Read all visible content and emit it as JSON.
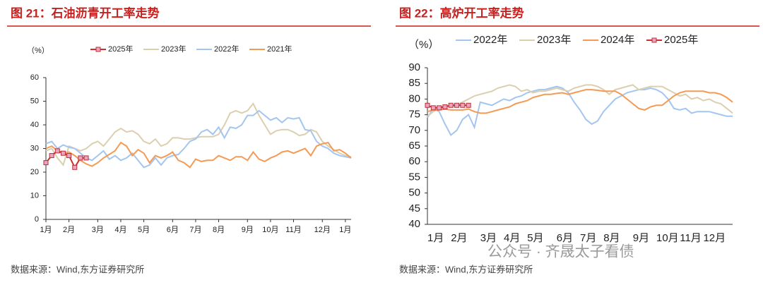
{
  "chart_data": [
    {
      "type": "line",
      "title": "图 21：石油沥青开工率走势",
      "y_label": "（%）",
      "source": "数据来源：Wind,东方证券研究所",
      "legend": "top",
      "categories": [
        "1月",
        null,
        null,
        null,
        "2月",
        null,
        null,
        null,
        null,
        "3月",
        null,
        null,
        null,
        "4月",
        null,
        null,
        null,
        "5月",
        null,
        null,
        null,
        null,
        "6月",
        null,
        null,
        null,
        "7月",
        null,
        null,
        null,
        "8月",
        null,
        null,
        null,
        null,
        "9月",
        null,
        null,
        null,
        "10月",
        null,
        null,
        null,
        "11月",
        null,
        null,
        null,
        null,
        "12月",
        null,
        null,
        null,
        "1月",
        null
      ],
      "ylim": [
        0,
        60
      ],
      "yticks": [
        0,
        10,
        20,
        30,
        40,
        50,
        60
      ],
      "series": [
        {
          "name": "2025年",
          "color": "#d42a2a",
          "markers": true,
          "values": [
            24,
            27,
            29,
            28,
            27,
            22,
            26,
            26,
            null,
            null,
            null,
            null,
            null,
            null,
            null,
            null,
            null,
            null,
            null,
            null,
            null,
            null,
            null,
            null,
            null,
            null,
            null,
            null,
            null,
            null,
            null,
            null,
            null,
            null,
            null,
            null,
            null,
            null,
            null,
            null,
            null,
            null,
            null,
            null,
            null,
            null,
            null,
            null,
            null,
            null,
            null,
            null,
            null,
            null
          ]
        },
        {
          "name": "2023年",
          "color": "#dccfb0",
          "values": [
            29,
            30,
            26,
            23,
            31,
            30,
            29,
            30,
            32,
            33,
            31,
            34,
            37,
            38.5,
            37,
            37.5,
            36,
            33,
            32,
            34,
            31,
            32,
            34.5,
            34.5,
            34,
            34,
            34.5,
            35,
            35,
            35,
            36,
            40,
            45,
            46,
            45,
            46,
            49,
            44,
            40,
            36,
            37.5,
            38,
            38,
            37,
            35.5,
            36,
            38,
            37,
            33,
            31,
            29.5,
            28,
            27,
            26.5
          ]
        },
        {
          "name": "2022年",
          "color": "#a3c6f0",
          "values": [
            32,
            33,
            30,
            31.5,
            30.5,
            30,
            28,
            26,
            25,
            27,
            29,
            25.5,
            27,
            25,
            26,
            28,
            25,
            22,
            23,
            26,
            23,
            26,
            27,
            27.5,
            30,
            33,
            34,
            37,
            38,
            36,
            39,
            34.5,
            39,
            38.5,
            40,
            44,
            44,
            46,
            44,
            42,
            43,
            41,
            43,
            42.5,
            43,
            38,
            37.5,
            33,
            31,
            30,
            28,
            27,
            26.5,
            26
          ]
        },
        {
          "name": "2021年",
          "color": "#f59a55",
          "values": [
            30,
            31,
            29,
            28,
            28.5,
            27,
            25,
            23.5,
            22.5,
            24,
            26,
            27.5,
            29,
            32.5,
            31,
            27,
            29.5,
            28,
            24,
            27,
            26,
            27,
            28.5,
            25,
            24,
            22,
            25.5,
            24.5,
            25,
            25,
            27,
            26,
            25,
            26.5,
            26.5,
            25,
            28.5,
            25.5,
            24.5,
            26,
            27,
            28.5,
            29,
            28,
            29,
            30,
            27,
            31,
            32,
            32.5,
            29,
            29.5,
            28,
            26
          ]
        }
      ]
    },
    {
      "type": "line",
      "title": "图 22：高炉开工率走势",
      "y_label": "（%）",
      "source": "数据来源：Wind,东方证券研究所",
      "legend": "top-left",
      "categories": [
        "1月",
        null,
        null,
        null,
        "2月",
        null,
        null,
        null,
        null,
        "3月",
        null,
        null,
        null,
        "4月",
        null,
        null,
        null,
        "5月",
        null,
        null,
        null,
        null,
        "6月",
        null,
        null,
        null,
        "7月",
        null,
        null,
        null,
        "8月",
        null,
        null,
        null,
        null,
        "9月",
        null,
        null,
        null,
        "10月",
        null,
        null,
        null,
        "11月",
        null,
        null,
        null,
        "12月",
        null,
        null,
        null,
        null,
        null
      ],
      "ylim": [
        40,
        90
      ],
      "yticks": [
        40,
        45,
        50,
        55,
        60,
        65,
        70,
        75,
        80,
        85,
        90
      ],
      "series": [
        {
          "name": "2022年",
          "color": "#a3c6f0",
          "values": [
            74,
            77,
            76,
            72,
            68.5,
            70,
            73.5,
            75,
            71,
            79,
            78.5,
            78,
            79,
            80,
            79.5,
            80.5,
            81,
            82,
            82.5,
            83,
            83,
            83.5,
            84,
            83.5,
            82,
            79,
            76.5,
            73.5,
            72,
            73,
            76,
            78,
            80,
            81,
            82,
            82.5,
            83,
            83,
            83.5,
            83,
            82,
            80,
            77,
            76.5,
            77,
            75.5,
            76,
            76,
            76,
            75.5,
            75,
            74.5,
            74.5
          ]
        },
        {
          "name": "2023年",
          "color": "#dccfb0",
          "values": [
            74.5,
            76,
            77,
            78,
            77.5,
            78,
            79,
            80,
            81,
            81.5,
            82,
            82.5,
            83.5,
            84,
            84.5,
            84,
            82.5,
            83,
            82,
            82.5,
            82.5,
            83,
            83.5,
            83,
            82.5,
            83.5,
            84,
            84.5,
            84.5,
            84,
            83,
            81.5,
            83,
            83.5,
            84,
            84.5,
            83,
            83.5,
            84,
            84,
            84,
            83,
            82,
            81,
            81.5,
            80,
            80.5,
            79.5,
            80,
            79,
            78.5,
            77,
            75.5
          ]
        },
        {
          "name": "2024年",
          "color": "#f59a55",
          "values": [
            76,
            76.5,
            76.5,
            76.8,
            76.5,
            76.5,
            76.5,
            76.8,
            76,
            75.5,
            75.5,
            76,
            76.5,
            77,
            77.5,
            78.5,
            79,
            79.5,
            80.5,
            81,
            81.5,
            81.5,
            81.8,
            82,
            81.5,
            82,
            82.5,
            83,
            83,
            82.8,
            82.5,
            82.5,
            82.5,
            81.5,
            80,
            78.5,
            77,
            76.5,
            77.5,
            78,
            78,
            79.5,
            81,
            82,
            82.5,
            82.5,
            82.5,
            82.5,
            82,
            82,
            81.5,
            80.5,
            79
          ]
        },
        {
          "name": "2025年",
          "color": "#d42a2a",
          "markers": true,
          "values": [
            78,
            77.2,
            77.2,
            77.5,
            78,
            78,
            78,
            78,
            null,
            null,
            null,
            null,
            null,
            null,
            null,
            null,
            null,
            null,
            null,
            null,
            null,
            null,
            null,
            null,
            null,
            null,
            null,
            null,
            null,
            null,
            null,
            null,
            null,
            null,
            null,
            null,
            null,
            null,
            null,
            null,
            null,
            null,
            null,
            null,
            null,
            null,
            null,
            null,
            null,
            null,
            null,
            null,
            null
          ]
        }
      ]
    }
  ],
  "watermark": "公众号 · 齐晟太子看债"
}
